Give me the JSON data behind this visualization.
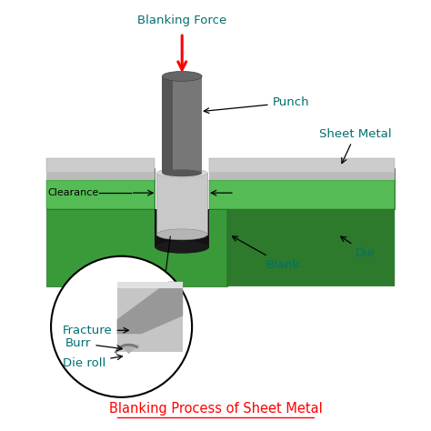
{
  "title": "Blanking Process of Sheet Metal",
  "title_color": "#ff0000",
  "title_fontsize": 10.5,
  "bg_color": "#ffffff",
  "label_color": "#007070",
  "die_dark": "#2d7a2d",
  "die_mid": "#3a9a3a",
  "die_light": "#55bb55",
  "punch_dark": "#555555",
  "punch_mid": "#777777",
  "punch_top_color": "#666666",
  "sheet_top": "#cccccc",
  "sheet_side": "#bbbbbb",
  "blank_body": "#c0c0c0",
  "force_arrow_color": "#ff0000",
  "force_label": "Blanking Force",
  "punch_label": "Punch",
  "sheet_label": "Sheet Metal",
  "clearance_label": "Clearance",
  "blank_label": "Blank",
  "die_label": "Die",
  "burr_label": "Burr",
  "fracture_label": "Fracture",
  "dieroll_label": "Die roll"
}
